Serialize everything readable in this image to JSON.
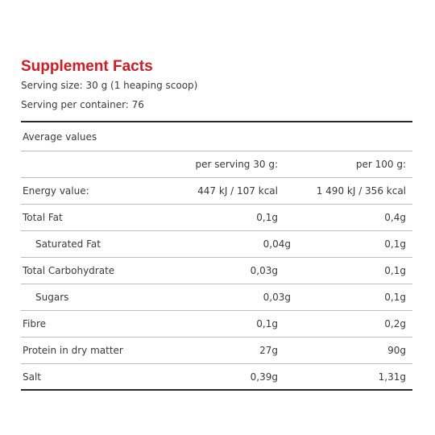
{
  "title": "Supplement Facts",
  "serving_size": "Serving size: 30 g (1 heaping scoop)",
  "servings_per_container": "Serving per container: 76",
  "average_values_label": "Average values",
  "columns": {
    "per_serving": "per serving 30 g:",
    "per_100g": "per 100 g:"
  },
  "rows": [
    {
      "label": "Energy value:",
      "per_serving": "447 kJ / 107 kcal",
      "per_100g": "1 490 kJ / 356 kcal"
    },
    {
      "label": "Total Fat",
      "per_serving": "0,1g",
      "per_100g": "0,4g"
    },
    {
      "label": "Saturated Fat",
      "per_serving": "0,04g",
      "per_100g": "0,1g"
    },
    {
      "label": "Total Carbohydrate",
      "per_serving": "0,03g",
      "per_100g": "0,1g"
    },
    {
      "label": "Sugars",
      "per_serving": "0,03g",
      "per_100g": "0,1g"
    },
    {
      "label": "Fibre",
      "per_serving": "0,1g",
      "per_100g": "0,2g"
    },
    {
      "label": "Protein in dry matter",
      "per_serving": "27g",
      "per_100g": "90g"
    },
    {
      "label": "Salt",
      "per_serving": "0,39g",
      "per_100g": "1,31g"
    }
  ],
  "colors": {
    "title": "#d71920",
    "text": "#3a3a3a",
    "rule": "#bdbdbd"
  }
}
